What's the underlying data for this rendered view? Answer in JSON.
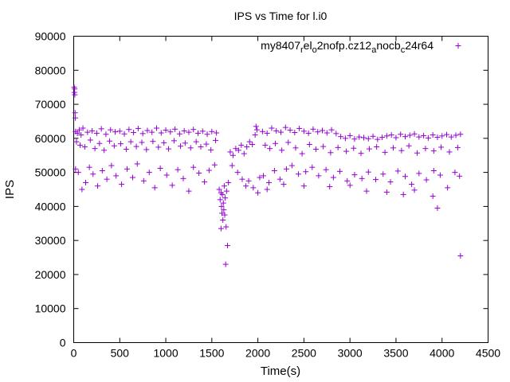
{
  "chart_data": {
    "type": "scatter",
    "title": "IPS vs Time for l.i0",
    "xlabel": "Time(s)",
    "ylabel": "IPS",
    "xlim": [
      0,
      4500
    ],
    "ylim": [
      0,
      90000
    ],
    "xticks": [
      0,
      500,
      1000,
      1500,
      2000,
      2500,
      3000,
      3500,
      4000,
      4500
    ],
    "yticks": [
      0,
      10000,
      20000,
      30000,
      40000,
      50000,
      60000,
      70000,
      80000,
      90000
    ],
    "grid": false,
    "legend_position": "top-right",
    "marker": "+",
    "color": "#9400d3",
    "series": [
      {
        "name_parts": [
          {
            "text": "my8407",
            "sub": false
          },
          {
            "text": "r",
            "sub": true
          },
          {
            "text": "el",
            "sub": false
          },
          {
            "text": "o",
            "sub": true
          },
          {
            "text": "2nofp.cz12",
            "sub": false
          },
          {
            "text": "a",
            "sub": true
          },
          {
            "text": "n",
            "sub": false
          },
          {
            "text": "ocb",
            "sub": false
          },
          {
            "text": "c",
            "sub": true
          },
          {
            "text": "24r64",
            "sub": false
          }
        ],
        "points": [
          [
            5,
            75000
          ],
          [
            8,
            73500
          ],
          [
            10,
            74500
          ],
          [
            12,
            72800
          ],
          [
            15,
            67500
          ],
          [
            18,
            66000
          ],
          [
            20,
            62000
          ],
          [
            40,
            61500
          ],
          [
            60,
            62500
          ],
          [
            80,
            61000
          ],
          [
            100,
            63000
          ],
          [
            150,
            61800
          ],
          [
            200,
            62200
          ],
          [
            250,
            61500
          ],
          [
            300,
            62800
          ],
          [
            350,
            61200
          ],
          [
            400,
            62500
          ],
          [
            450,
            61900
          ],
          [
            500,
            62100
          ],
          [
            550,
            61300
          ],
          [
            600,
            62600
          ],
          [
            650,
            61700
          ],
          [
            700,
            62900
          ],
          [
            750,
            61400
          ],
          [
            800,
            62300
          ],
          [
            850,
            61800
          ],
          [
            900,
            63000
          ],
          [
            950,
            61600
          ],
          [
            1000,
            62400
          ],
          [
            1050,
            61900
          ],
          [
            1100,
            62700
          ],
          [
            1150,
            61300
          ],
          [
            1200,
            62200
          ],
          [
            1250,
            61800
          ],
          [
            1300,
            62600
          ],
          [
            1350,
            61500
          ],
          [
            1400,
            62100
          ],
          [
            1450,
            61200
          ],
          [
            1500,
            62000
          ],
          [
            1550,
            61600
          ],
          [
            30,
            59000
          ],
          [
            70,
            58000
          ],
          [
            120,
            57500
          ],
          [
            180,
            59500
          ],
          [
            230,
            57000
          ],
          [
            280,
            58500
          ],
          [
            330,
            56500
          ],
          [
            390,
            59200
          ],
          [
            440,
            57800
          ],
          [
            510,
            58400
          ],
          [
            570,
            56800
          ],
          [
            620,
            59000
          ],
          [
            680,
            57600
          ],
          [
            740,
            58800
          ],
          [
            790,
            56700
          ],
          [
            860,
            59100
          ],
          [
            920,
            57400
          ],
          [
            980,
            58700
          ],
          [
            1030,
            56900
          ],
          [
            1090,
            59300
          ],
          [
            1160,
            57700
          ],
          [
            1210,
            58600
          ],
          [
            1270,
            57200
          ],
          [
            1330,
            59000
          ],
          [
            1380,
            57500
          ],
          [
            1440,
            58300
          ],
          [
            1490,
            56600
          ],
          [
            1540,
            59400
          ],
          [
            20,
            51000
          ],
          [
            50,
            50000
          ],
          [
            90,
            45000
          ],
          [
            130,
            47000
          ],
          [
            170,
            51500
          ],
          [
            210,
            49500
          ],
          [
            260,
            46000
          ],
          [
            310,
            50500
          ],
          [
            360,
            48000
          ],
          [
            410,
            52000
          ],
          [
            460,
            49000
          ],
          [
            520,
            46500
          ],
          [
            580,
            51000
          ],
          [
            640,
            48500
          ],
          [
            690,
            52500
          ],
          [
            760,
            47500
          ],
          [
            820,
            50000
          ],
          [
            880,
            45500
          ],
          [
            940,
            51200
          ],
          [
            1010,
            49200
          ],
          [
            1070,
            46200
          ],
          [
            1130,
            50800
          ],
          [
            1190,
            48200
          ],
          [
            1250,
            44500
          ],
          [
            1300,
            51500
          ],
          [
            1360,
            49800
          ],
          [
            1420,
            47200
          ],
          [
            1470,
            50600
          ],
          [
            1530,
            52200
          ],
          [
            1580,
            45000
          ],
          [
            1590,
            42000
          ],
          [
            1600,
            44000
          ],
          [
            1605,
            40000
          ],
          [
            1610,
            38000
          ],
          [
            1615,
            43500
          ],
          [
            1620,
            36000
          ],
          [
            1625,
            41000
          ],
          [
            1630,
            39000
          ],
          [
            1635,
            46000
          ],
          [
            1640,
            37500
          ],
          [
            1645,
            42500
          ],
          [
            1650,
            23000
          ],
          [
            1655,
            34000
          ],
          [
            1660,
            44500
          ],
          [
            1670,
            28500
          ],
          [
            1680,
            47000
          ],
          [
            1600,
            33500
          ],
          [
            1700,
            56000
          ],
          [
            1730,
            55000
          ],
          [
            1760,
            57000
          ],
          [
            1790,
            56500
          ],
          [
            1820,
            58000
          ],
          [
            1850,
            55500
          ],
          [
            1880,
            57500
          ],
          [
            1910,
            59000
          ],
          [
            1940,
            58200
          ],
          [
            1970,
            61000
          ],
          [
            1980,
            63500
          ],
          [
            1990,
            62500
          ],
          [
            1720,
            52000
          ],
          [
            1780,
            50000
          ],
          [
            1830,
            48000
          ],
          [
            1870,
            46000
          ],
          [
            1900,
            47500
          ],
          [
            1950,
            45500
          ],
          [
            2000,
            44000
          ],
          [
            2020,
            48500
          ],
          [
            2050,
            62000
          ],
          [
            2100,
            61500
          ],
          [
            2150,
            63000
          ],
          [
            2200,
            62200
          ],
          [
            2250,
            61800
          ],
          [
            2300,
            63200
          ],
          [
            2350,
            62400
          ],
          [
            2400,
            61700
          ],
          [
            2450,
            62900
          ],
          [
            2500,
            62100
          ],
          [
            2550,
            61500
          ],
          [
            2600,
            62700
          ],
          [
            2650,
            61900
          ],
          [
            2700,
            62300
          ],
          [
            2750,
            61600
          ],
          [
            2800,
            62500
          ],
          [
            2850,
            61400
          ],
          [
            2900,
            60500
          ],
          [
            2950,
            60000
          ],
          [
            3000,
            60800
          ],
          [
            3050,
            59800
          ],
          [
            3100,
            60400
          ],
          [
            3150,
            60200
          ],
          [
            3200,
            59900
          ],
          [
            3250,
            60600
          ],
          [
            3300,
            59700
          ],
          [
            3350,
            60300
          ],
          [
            3400,
            60700
          ],
          [
            3450,
            61000
          ],
          [
            3500,
            60200
          ],
          [
            3550,
            61200
          ],
          [
            3600,
            60500
          ],
          [
            3650,
            60900
          ],
          [
            3700,
            61300
          ],
          [
            3750,
            60400
          ],
          [
            3800,
            60800
          ],
          [
            3850,
            60100
          ],
          [
            3900,
            61000
          ],
          [
            3950,
            60300
          ],
          [
            4000,
            60700
          ],
          [
            4050,
            61100
          ],
          [
            4100,
            60400
          ],
          [
            4150,
            60900
          ],
          [
            4200,
            61200
          ],
          [
            2080,
            58000
          ],
          [
            2130,
            57000
          ],
          [
            2190,
            58500
          ],
          [
            2260,
            56500
          ],
          [
            2330,
            58800
          ],
          [
            2410,
            57200
          ],
          [
            2480,
            55500
          ],
          [
            2560,
            58200
          ],
          [
            2630,
            56800
          ],
          [
            2710,
            57600
          ],
          [
            2790,
            55800
          ],
          [
            2870,
            57300
          ],
          [
            2960,
            56200
          ],
          [
            3040,
            57100
          ],
          [
            3120,
            55600
          ],
          [
            3210,
            56900
          ],
          [
            3290,
            57500
          ],
          [
            3380,
            55900
          ],
          [
            3470,
            57200
          ],
          [
            3560,
            56400
          ],
          [
            3640,
            57800
          ],
          [
            3730,
            55700
          ],
          [
            3820,
            57000
          ],
          [
            3910,
            56300
          ],
          [
            3990,
            57400
          ],
          [
            4080,
            56000
          ],
          [
            4170,
            57300
          ],
          [
            2060,
            49000
          ],
          [
            2120,
            47000
          ],
          [
            2180,
            50500
          ],
          [
            2240,
            48000
          ],
          [
            2310,
            51000
          ],
          [
            2370,
            52000
          ],
          [
            2440,
            49500
          ],
          [
            2520,
            50200
          ],
          [
            2590,
            51500
          ],
          [
            2660,
            49000
          ],
          [
            2740,
            50800
          ],
          [
            2820,
            48500
          ],
          [
            2890,
            50300
          ],
          [
            2970,
            47500
          ],
          [
            3050,
            49300
          ],
          [
            3130,
            48200
          ],
          [
            3200,
            50100
          ],
          [
            3280,
            47900
          ],
          [
            3360,
            49500
          ],
          [
            3440,
            47200
          ],
          [
            3520,
            50400
          ],
          [
            3600,
            48800
          ],
          [
            3670,
            46500
          ],
          [
            3750,
            49700
          ],
          [
            3830,
            47800
          ],
          [
            3910,
            50500
          ],
          [
            3980,
            49200
          ],
          [
            4060,
            45500
          ],
          [
            4140,
            50000
          ],
          [
            4190,
            48900
          ],
          [
            2100,
            45000
          ],
          [
            2280,
            46500
          ],
          [
            2500,
            46000
          ],
          [
            2780,
            45800
          ],
          [
            3000,
            46200
          ],
          [
            3180,
            44500
          ],
          [
            3400,
            44200
          ],
          [
            3580,
            43500
          ],
          [
            3700,
            44800
          ],
          [
            3900,
            43000
          ],
          [
            3950,
            39500
          ],
          [
            4200,
            25500
          ]
        ]
      }
    ]
  }
}
